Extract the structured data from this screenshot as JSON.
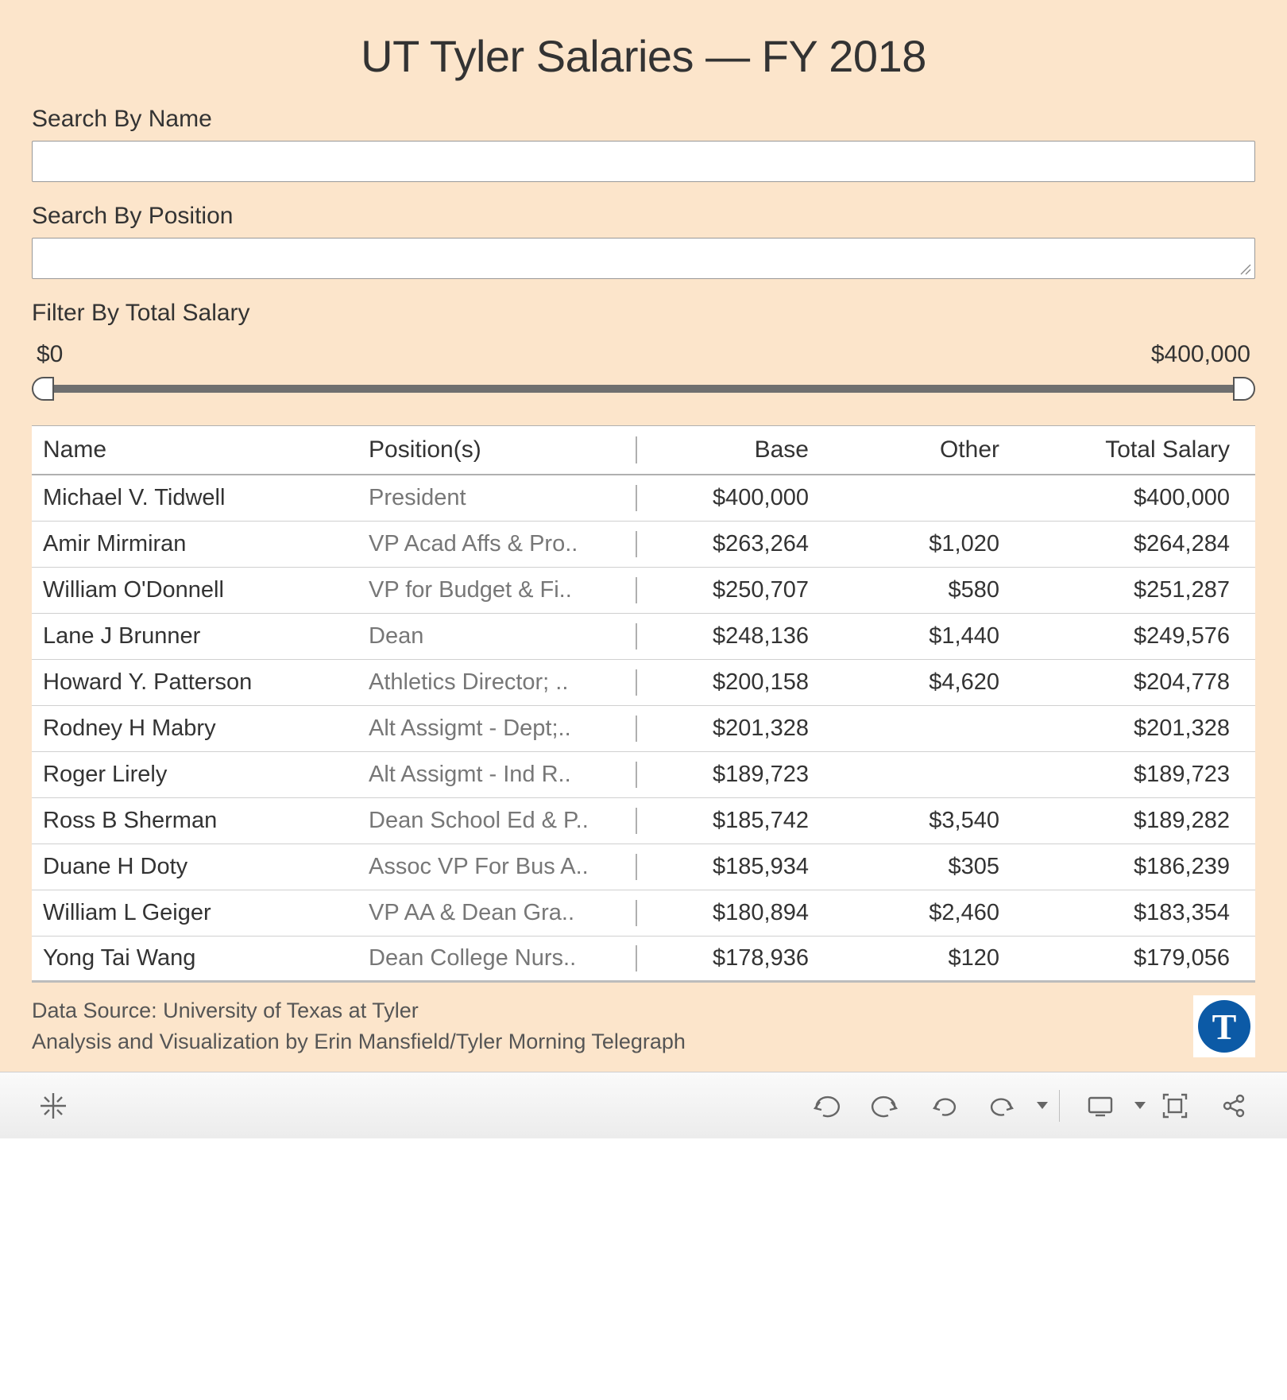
{
  "title": "UT Tyler Salaries — FY 2018",
  "filters": {
    "by_name_label": "Search By Name",
    "by_position_label": "Search By Position",
    "by_salary_label": "Filter By Total Salary",
    "salary_min_label": "$0",
    "salary_max_label": "$400,000",
    "salary_min": 0,
    "salary_max": 400000
  },
  "table": {
    "columns": {
      "name": "Name",
      "position": "Position(s)",
      "base": "Base",
      "other": "Other",
      "total": "Total Salary"
    },
    "rows": [
      {
        "name": "Michael V. Tidwell",
        "position": "President",
        "base": "$400,000",
        "other": "",
        "total": "$400,000"
      },
      {
        "name": "Amir Mirmiran",
        "position": "VP Acad Affs & Pro..",
        "base": "$263,264",
        "other": "$1,020",
        "total": "$264,284"
      },
      {
        "name": "William O'Donnell",
        "position": "VP for Budget & Fi..",
        "base": "$250,707",
        "other": "$580",
        "total": "$251,287"
      },
      {
        "name": "Lane J Brunner",
        "position": "Dean",
        "base": "$248,136",
        "other": "$1,440",
        "total": "$249,576"
      },
      {
        "name": "Howard Y. Patterson",
        "position": "Athletics Director; ..",
        "base": "$200,158",
        "other": "$4,620",
        "total": "$204,778"
      },
      {
        "name": "Rodney H Mabry",
        "position": "Alt Assigmt - Dept;..",
        "base": "$201,328",
        "other": "",
        "total": "$201,328"
      },
      {
        "name": "Roger Lirely",
        "position": "Alt Assigmt - Ind R..",
        "base": "$189,723",
        "other": "",
        "total": "$189,723"
      },
      {
        "name": "Ross B Sherman",
        "position": "Dean School Ed & P..",
        "base": "$185,742",
        "other": "$3,540",
        "total": "$189,282"
      },
      {
        "name": "Duane H Doty",
        "position": "Assoc VP For Bus A..",
        "base": "$185,934",
        "other": "$305",
        "total": "$186,239"
      },
      {
        "name": "William L Geiger",
        "position": "VP  AA & Dean Gra..",
        "base": "$180,894",
        "other": "$2,460",
        "total": "$183,354"
      },
      {
        "name": "Yong Tai Wang",
        "position": "Dean College Nurs..",
        "base": "$178,936",
        "other": "$120",
        "total": "$179,056"
      }
    ]
  },
  "footer": {
    "line1": "Data Source: University of Texas at Tyler",
    "line2": "Analysis and Visualization by Erin Mansfield/Tyler Morning Telegraph",
    "logo_letter": "T"
  },
  "colors": {
    "page_bg": "#fce5cb",
    "text_primary": "#333333",
    "text_muted": "#777777",
    "row_border": "#d0d0d0",
    "header_border": "#b0b0b0",
    "slider_track": "#6f6f6f",
    "logo_bg": "#0c5aa6",
    "toolbar_icon": "#666666"
  }
}
